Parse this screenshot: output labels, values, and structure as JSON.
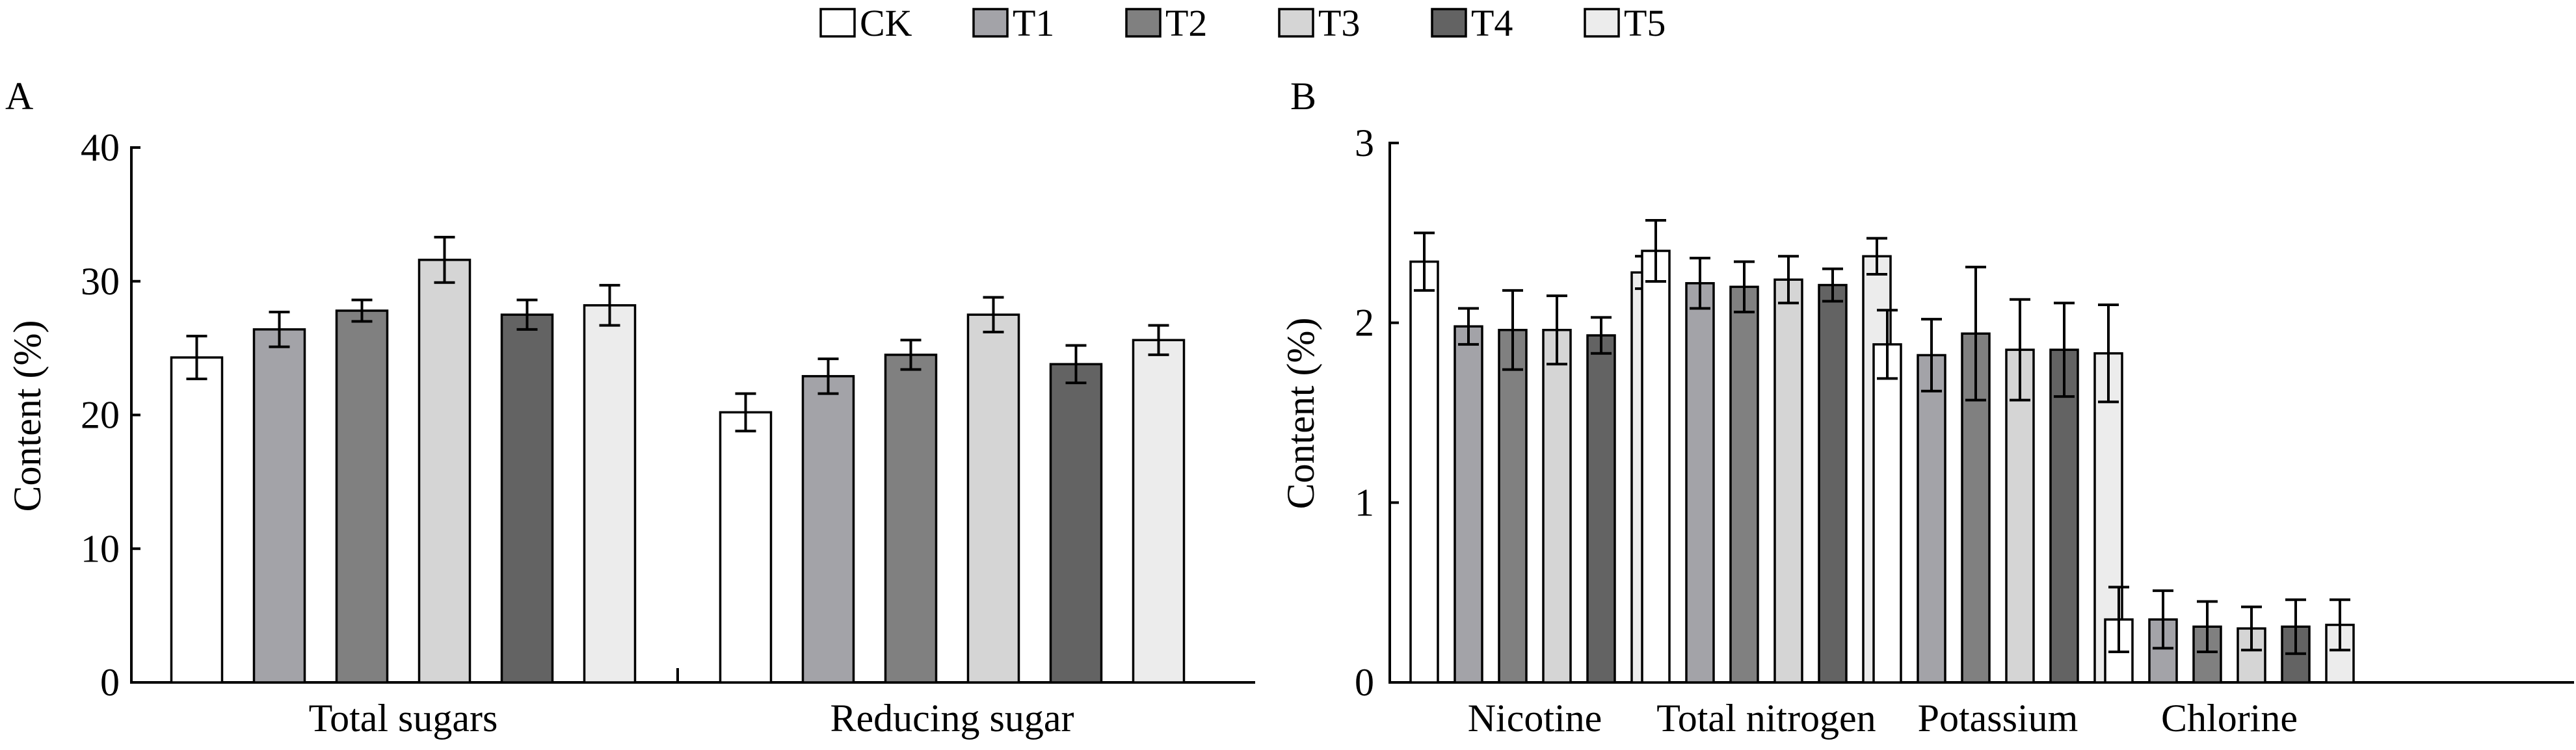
{
  "legend": {
    "items": [
      {
        "label": "CK",
        "color": "#ffffff"
      },
      {
        "label": "T1",
        "color": "#a3a3a8"
      },
      {
        "label": "T2",
        "color": "#808080"
      },
      {
        "label": "T3",
        "color": "#d5d5d5"
      },
      {
        "label": "T4",
        "color": "#636363"
      },
      {
        "label": "T5",
        "color": "#ececec"
      }
    ]
  },
  "chart_data": [
    {
      "panel_label": "A",
      "type": "bar",
      "ylabel": "Content (%)",
      "ylim": [
        0,
        40
      ],
      "yticks": [
        0,
        10,
        20,
        30,
        40
      ],
      "categories": [
        "Total sugars",
        "Reducing sugar"
      ],
      "series": [
        {
          "name": "CK",
          "values": [
            24.3,
            20.2
          ],
          "errors": [
            1.6,
            1.4
          ]
        },
        {
          "name": "T1",
          "values": [
            26.4,
            22.9
          ],
          "errors": [
            1.3,
            1.3
          ]
        },
        {
          "name": "T2",
          "values": [
            27.8,
            24.5
          ],
          "errors": [
            0.8,
            1.1
          ]
        },
        {
          "name": "T3",
          "values": [
            31.6,
            27.5
          ],
          "errors": [
            1.7,
            1.3
          ]
        },
        {
          "name": "T4",
          "values": [
            27.5,
            23.8
          ],
          "errors": [
            1.1,
            1.4
          ]
        },
        {
          "name": "T5",
          "values": [
            28.2,
            25.6
          ],
          "errors": [
            1.5,
            1.1
          ]
        }
      ]
    },
    {
      "panel_label": "B",
      "type": "bar",
      "ylabel": "Content (%)",
      "ylim": [
        0,
        3
      ],
      "yticks": [
        0,
        1,
        2,
        3
      ],
      "categories": [
        "Nicotine",
        "Total nitrogen",
        "Potassium",
        "Chlorine"
      ],
      "series": [
        {
          "name": "CK",
          "values": [
            2.34,
            2.4,
            1.88,
            0.35
          ],
          "errors": [
            0.16,
            0.17,
            0.19,
            0.18
          ]
        },
        {
          "name": "T1",
          "values": [
            1.98,
            2.22,
            1.82,
            0.35
          ],
          "errors": [
            0.1,
            0.14,
            0.2,
            0.16
          ]
        },
        {
          "name": "T2",
          "values": [
            1.96,
            2.2,
            1.94,
            0.31
          ],
          "errors": [
            0.22,
            0.14,
            0.37,
            0.14
          ]
        },
        {
          "name": "T3",
          "values": [
            1.96,
            2.24,
            1.85,
            0.3
          ],
          "errors": [
            0.19,
            0.13,
            0.28,
            0.12
          ]
        },
        {
          "name": "T4",
          "values": [
            1.93,
            2.21,
            1.85,
            0.31
          ],
          "errors": [
            0.1,
            0.09,
            0.26,
            0.15
          ]
        },
        {
          "name": "T5",
          "values": [
            2.28,
            2.37,
            1.83,
            0.32
          ],
          "errors": [
            0.09,
            0.1,
            0.27,
            0.14
          ]
        }
      ]
    }
  ]
}
